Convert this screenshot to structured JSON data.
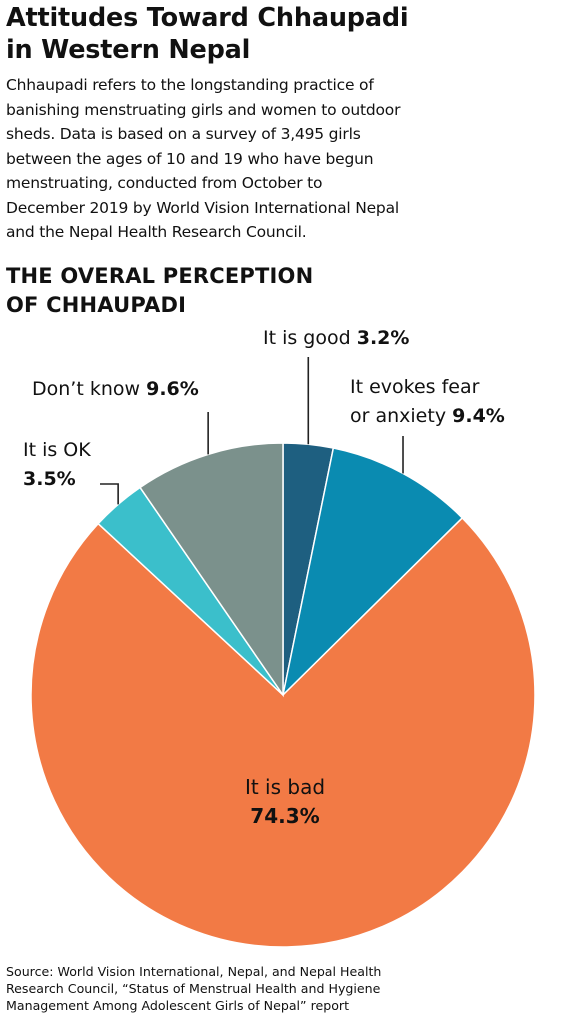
{
  "header": {
    "title_line1": "Attitudes Toward Chhaupadi",
    "title_line2": "in Western Nepal",
    "description_lines": [
      "Chhaupadi refers to the longstanding practice of",
      "banishing menstruating girls and women to outdoor",
      "sheds. Data is based on a survey of 3,495 girls",
      "between the ages of 10 and 19 who have begun",
      "menstruating, conducted from October to",
      "December 2019 by World Vision International Nepal",
      "and the Nepal Health Research Council."
    ]
  },
  "chart_data": {
    "type": "pie",
    "title_line1": "THE OVERAL PERCEPTION",
    "title_line2": "OF CHHAUPADI",
    "start": "12 o'clock, clockwise",
    "slices": [
      {
        "label_lines": [
          "It is good"
        ],
        "value": 3.2,
        "value_label": "3.2%",
        "color": "#1e5f80"
      },
      {
        "label_lines": [
          "It evokes fear",
          "or anxiety"
        ],
        "value": 9.4,
        "value_label": "9.4%",
        "color": "#0a8bb1"
      },
      {
        "label_lines": [
          "It is bad"
        ],
        "value": 74.3,
        "value_label": "74.3%",
        "color": "#f27a45"
      },
      {
        "label_lines": [
          "It is OK"
        ],
        "value": 3.5,
        "value_label": "3.5%",
        "color": "#3bbfcb"
      },
      {
        "label_lines": [
          "Don’t know"
        ],
        "value": 9.6,
        "value_label": "9.6%",
        "color": "#7b918c"
      }
    ]
  },
  "source": {
    "lines": [
      "Source: World Vision International, Nepal, and Nepal Health",
      "Research Council, “Status of Menstrual Health and Hygiene",
      "Management Among Adolescent Girls of Nepal” report"
    ]
  }
}
